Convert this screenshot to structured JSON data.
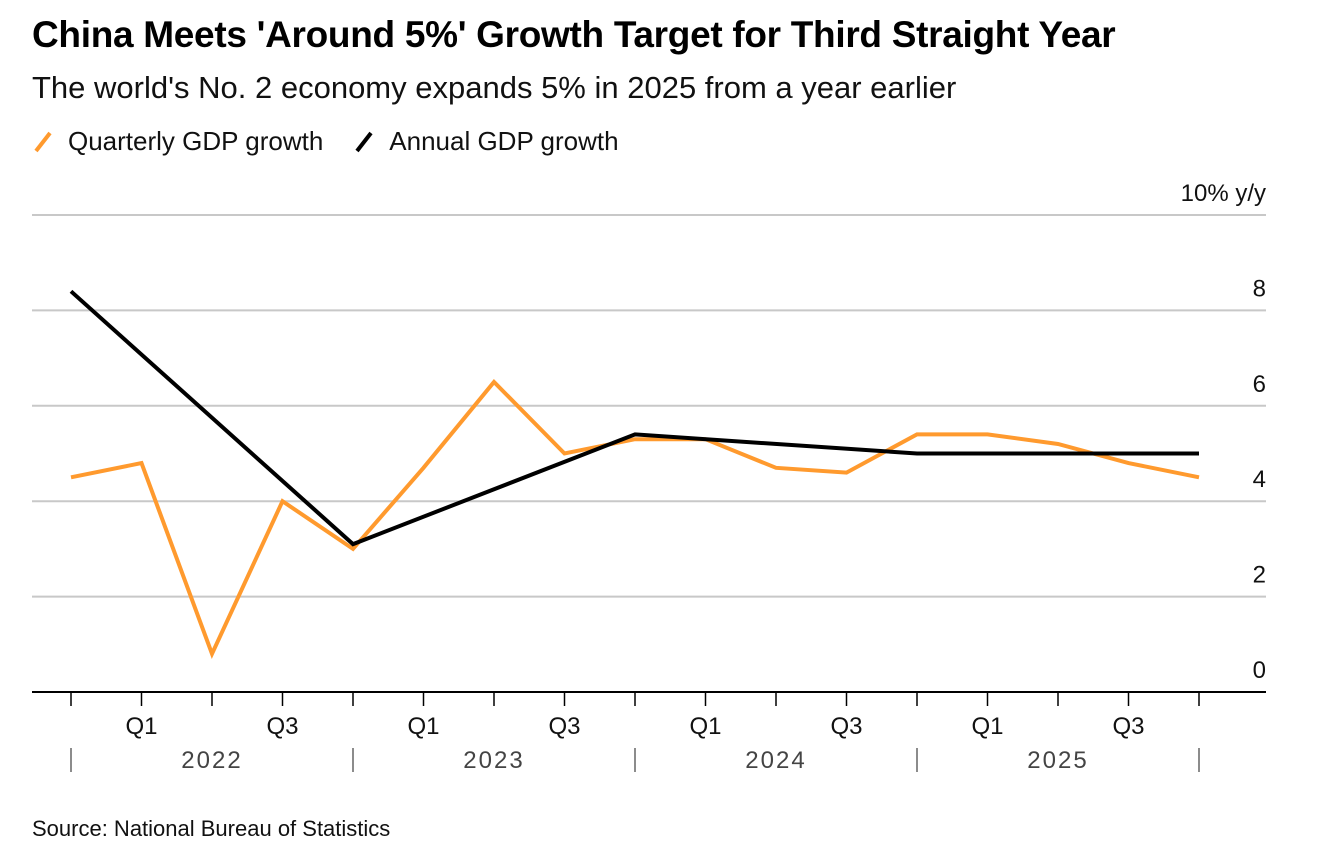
{
  "title": "China Meets 'Around 5%' Growth Target for Third Straight Year",
  "subtitle": "The world's No. 2 economy expands 5% in 2025 from a year earlier",
  "source": "Source: National Bureau of Statistics",
  "colors": {
    "quarterly": "#FF9A2E",
    "annual": "#000000",
    "grid": "#c8c8c8",
    "axis": "#000000"
  },
  "chart_data": {
    "type": "line",
    "title": "China Meets 'Around 5%' Growth Target for Third Straight Year",
    "subtitle": "The world's No. 2 economy expands 5% in 2025 from a year earlier",
    "xlabel": "",
    "ylabel": "% y/y",
    "ylim": [
      0,
      10
    ],
    "yticks": [
      0,
      2,
      4,
      6,
      8,
      10
    ],
    "ytick_labels": [
      "0",
      "2",
      "4",
      "6",
      "8",
      "10% y/y"
    ],
    "grid": true,
    "legend_position": "top-left",
    "x": [
      "2021 Q4",
      "2022 Q1",
      "2022 Q2",
      "2022 Q3",
      "2022 Q4",
      "2023 Q1",
      "2023 Q2",
      "2023 Q3",
      "2023 Q4",
      "2024 Q1",
      "2024 Q2",
      "2024 Q3",
      "2024 Q4",
      "2025 Q1",
      "2025 Q2",
      "2025 Q3",
      "2025 Q4"
    ],
    "quarter_labels": [
      {
        "index": 1,
        "label": "Q1"
      },
      {
        "index": 3,
        "label": "Q3"
      },
      {
        "index": 5,
        "label": "Q1"
      },
      {
        "index": 7,
        "label": "Q3"
      },
      {
        "index": 9,
        "label": "Q1"
      },
      {
        "index": 11,
        "label": "Q3"
      },
      {
        "index": 13,
        "label": "Q1"
      },
      {
        "index": 15,
        "label": "Q3"
      }
    ],
    "year_labels": [
      {
        "label": "2022",
        "start": 0,
        "end": 4
      },
      {
        "label": "2023",
        "start": 4,
        "end": 8
      },
      {
        "label": "2024",
        "start": 8,
        "end": 12
      },
      {
        "label": "2025",
        "start": 12,
        "end": 16
      }
    ],
    "series": [
      {
        "name": "Quarterly GDP growth",
        "color": "#FF9A2E",
        "points": [
          {
            "i": 0,
            "v": 4.5
          },
          {
            "i": 1,
            "v": 4.8
          },
          {
            "i": 2,
            "v": 0.8
          },
          {
            "i": 3,
            "v": 4.0
          },
          {
            "i": 4,
            "v": 3.0
          },
          {
            "i": 5,
            "v": 4.7
          },
          {
            "i": 6,
            "v": 6.5
          },
          {
            "i": 7,
            "v": 5.0
          },
          {
            "i": 8,
            "v": 5.3
          },
          {
            "i": 9,
            "v": 5.3
          },
          {
            "i": 10,
            "v": 4.7
          },
          {
            "i": 11,
            "v": 4.6
          },
          {
            "i": 12,
            "v": 5.4
          },
          {
            "i": 13,
            "v": 5.4
          },
          {
            "i": 14,
            "v": 5.2
          },
          {
            "i": 15,
            "v": 4.8
          },
          {
            "i": 16,
            "v": 4.5
          }
        ]
      },
      {
        "name": "Annual GDP growth",
        "color": "#000000",
        "points": [
          {
            "i": 0,
            "v": 8.4
          },
          {
            "i": 4,
            "v": 3.1
          },
          {
            "i": 8,
            "v": 5.4
          },
          {
            "i": 12,
            "v": 5.0
          },
          {
            "i": 16,
            "v": 5.0
          }
        ]
      }
    ]
  }
}
